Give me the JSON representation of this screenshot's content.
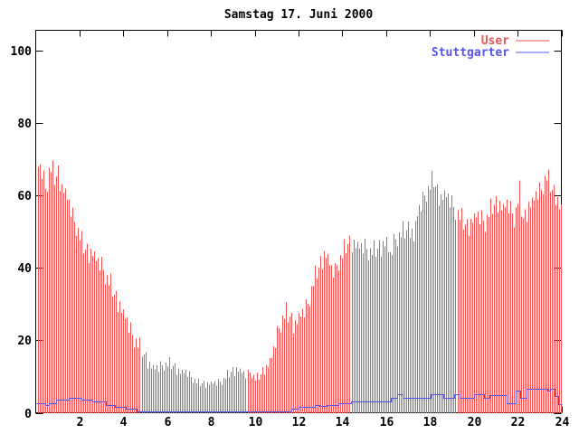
{
  "title": "Samstag 17. Juni 2000",
  "legend": {
    "position": "top-right",
    "items": [
      {
        "label": "User",
        "color": "#f05555"
      },
      {
        "label": "Stuttgarter",
        "color": "#5555ee"
      }
    ]
  },
  "colors": {
    "background": "#ffffff",
    "axis": "#000000",
    "user_series": "#f05555",
    "stuttgarter_series": "#5555ee"
  },
  "chart_data": {
    "type": "bar",
    "title": "Samstag 17. Juni 2000",
    "xlabel": "",
    "ylabel": "",
    "x_unit": "hour of day",
    "xlim": [
      0,
      24
    ],
    "ylim": [
      0,
      105
    ],
    "xticks": [
      2,
      4,
      6,
      8,
      10,
      12,
      14,
      16,
      18,
      20,
      22,
      24
    ],
    "yticks": [
      0,
      20,
      40,
      60,
      80,
      100
    ],
    "grid": false,
    "legend_position": "top-right",
    "series": [
      {
        "name": "User",
        "style": "impulses",
        "color": "#f05555",
        "samples_per_hour": 12,
        "jitter_pattern": [
          0,
          1.2,
          -0.8,
          2.0,
          0.4,
          -1.4,
          0.9,
          -0.3,
          2.4,
          -1.0,
          0.2,
          1.5,
          -1.8,
          0.8,
          -0.5,
          1.0
        ],
        "keypoints": [
          [
            0.0,
            69
          ],
          [
            0.15,
            67
          ],
          [
            0.3,
            65
          ],
          [
            0.45,
            60
          ],
          [
            0.55,
            66
          ],
          [
            0.7,
            67
          ],
          [
            0.85,
            64
          ],
          [
            1.0,
            66
          ],
          [
            1.15,
            62
          ],
          [
            1.3,
            61
          ],
          [
            1.45,
            58
          ],
          [
            1.6,
            55
          ],
          [
            1.75,
            52
          ],
          [
            1.9,
            50
          ],
          [
            2.05,
            47
          ],
          [
            2.2,
            45
          ],
          [
            2.4,
            44
          ],
          [
            2.6,
            44
          ],
          [
            2.8,
            41
          ],
          [
            3.0,
            40
          ],
          [
            3.2,
            37
          ],
          [
            3.4,
            35
          ],
          [
            3.6,
            32
          ],
          [
            3.8,
            30
          ],
          [
            4.0,
            27
          ],
          [
            4.2,
            24
          ],
          [
            4.4,
            21
          ],
          [
            4.6,
            19
          ],
          [
            4.8,
            17
          ],
          [
            5.0,
            15
          ],
          [
            5.2,
            13
          ],
          [
            5.4,
            12
          ],
          [
            5.6,
            12
          ],
          [
            5.8,
            13
          ],
          [
            6.0,
            13
          ],
          [
            6.2,
            13
          ],
          [
            6.4,
            12
          ],
          [
            6.6,
            11
          ],
          [
            6.8,
            11
          ],
          [
            7.0,
            10
          ],
          [
            7.2,
            9
          ],
          [
            7.4,
            8
          ],
          [
            7.7,
            8
          ],
          [
            8.0,
            8
          ],
          [
            8.3,
            8
          ],
          [
            8.6,
            9
          ],
          [
            8.9,
            11
          ],
          [
            9.2,
            12
          ],
          [
            9.4,
            11
          ],
          [
            9.6,
            10
          ],
          [
            9.8,
            11
          ],
          [
            10.0,
            9
          ],
          [
            10.2,
            10
          ],
          [
            10.4,
            12
          ],
          [
            10.6,
            13
          ],
          [
            10.8,
            16
          ],
          [
            11.0,
            21
          ],
          [
            11.2,
            25
          ],
          [
            11.4,
            27
          ],
          [
            11.6,
            26
          ],
          [
            11.8,
            24
          ],
          [
            12.0,
            26
          ],
          [
            12.2,
            27
          ],
          [
            12.4,
            29
          ],
          [
            12.6,
            34
          ],
          [
            12.8,
            38
          ],
          [
            13.0,
            41
          ],
          [
            13.2,
            44
          ],
          [
            13.35,
            42
          ],
          [
            13.5,
            39
          ],
          [
            13.65,
            38
          ],
          [
            13.8,
            41
          ],
          [
            14.0,
            43
          ],
          [
            14.2,
            46
          ],
          [
            14.4,
            47
          ],
          [
            14.6,
            46
          ],
          [
            14.8,
            45
          ],
          [
            15.0,
            45
          ],
          [
            15.2,
            44
          ],
          [
            15.4,
            44
          ],
          [
            15.6,
            45
          ],
          [
            15.8,
            46
          ],
          [
            16.0,
            47
          ],
          [
            16.15,
            42
          ],
          [
            16.3,
            46
          ],
          [
            16.5,
            48
          ],
          [
            16.7,
            49
          ],
          [
            16.9,
            50
          ],
          [
            17.1,
            51
          ],
          [
            17.25,
            48
          ],
          [
            17.4,
            54
          ],
          [
            17.6,
            57
          ],
          [
            17.8,
            60
          ],
          [
            18.0,
            62
          ],
          [
            18.15,
            64
          ],
          [
            18.3,
            61
          ],
          [
            18.5,
            59
          ],
          [
            18.7,
            60
          ],
          [
            18.9,
            58
          ],
          [
            19.1,
            56
          ],
          [
            19.3,
            54
          ],
          [
            19.5,
            52
          ],
          [
            19.7,
            51
          ],
          [
            19.9,
            53
          ],
          [
            20.1,
            54
          ],
          [
            20.3,
            53
          ],
          [
            20.5,
            52
          ],
          [
            20.7,
            55
          ],
          [
            20.9,
            57
          ],
          [
            21.1,
            58
          ],
          [
            21.3,
            56
          ],
          [
            21.5,
            57
          ],
          [
            21.7,
            55
          ],
          [
            21.85,
            53
          ],
          [
            22.0,
            58
          ],
          [
            22.1,
            61
          ],
          [
            22.2,
            53
          ],
          [
            22.35,
            54
          ],
          [
            22.5,
            57
          ],
          [
            22.7,
            58
          ],
          [
            22.9,
            60
          ],
          [
            23.1,
            61
          ],
          [
            23.3,
            65
          ],
          [
            23.45,
            63
          ],
          [
            23.6,
            61
          ],
          [
            23.75,
            60
          ],
          [
            23.9,
            57
          ],
          [
            24.0,
            56
          ]
        ]
      },
      {
        "name": "Stuttgarter",
        "style": "step-line",
        "color": "#5555ee",
        "steps": [
          [
            0.0,
            2.7
          ],
          [
            0.45,
            2.0
          ],
          [
            0.6,
            2.7
          ],
          [
            0.95,
            3.5
          ],
          [
            1.5,
            4.2
          ],
          [
            2.1,
            3.5
          ],
          [
            2.6,
            3.0
          ],
          [
            3.2,
            2.0
          ],
          [
            3.6,
            1.5
          ],
          [
            4.1,
            1.2
          ],
          [
            4.6,
            0
          ],
          [
            11.65,
            1.0
          ],
          [
            12.0,
            1.5
          ],
          [
            12.75,
            2.2
          ],
          [
            12.95,
            1.8
          ],
          [
            13.3,
            2.0
          ],
          [
            13.8,
            2.6
          ],
          [
            14.4,
            3.2
          ],
          [
            16.2,
            4.2
          ],
          [
            16.5,
            5.2
          ],
          [
            16.75,
            4.2
          ],
          [
            18.05,
            5.2
          ],
          [
            18.6,
            4.2
          ],
          [
            19.1,
            5.0
          ],
          [
            19.35,
            4.2
          ],
          [
            20.0,
            5.2
          ],
          [
            20.45,
            4.2
          ],
          [
            20.7,
            4.8
          ],
          [
            21.5,
            2.6
          ],
          [
            21.9,
            6.2
          ],
          [
            22.1,
            4.2
          ],
          [
            22.4,
            6.7
          ],
          [
            23.35,
            6.2
          ],
          [
            23.5,
            6.7
          ],
          [
            23.7,
            4.5
          ],
          [
            23.85,
            2.4
          ],
          [
            24.0,
            2.4
          ]
        ]
      }
    ]
  }
}
